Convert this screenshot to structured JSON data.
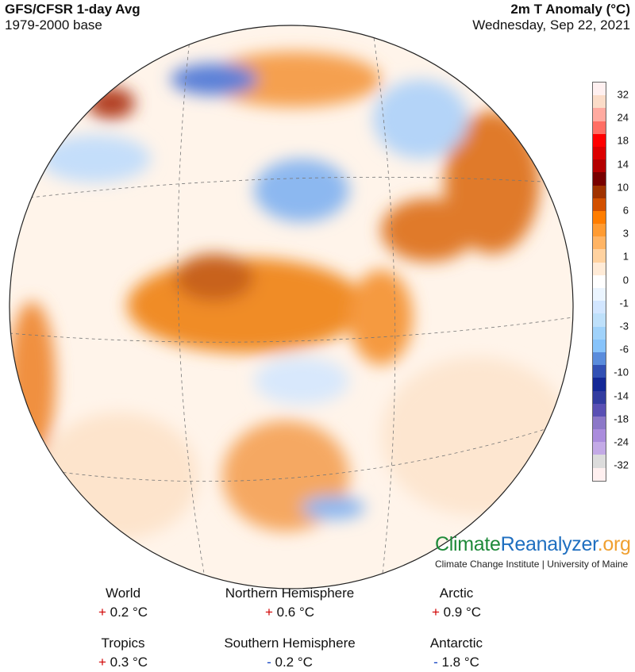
{
  "header": {
    "left_title": "GFS/CFSR 1-day Avg",
    "left_subtitle": "1979-2000 base",
    "right_title": "2m T Anomaly (°C)",
    "right_date": "Wednesday, Sep 22, 2021"
  },
  "colorbar": {
    "labels": [
      "32",
      "24",
      "18",
      "14",
      "10",
      "6",
      "3",
      "1",
      "0",
      "-1",
      "-3",
      "-6",
      "-10",
      "-14",
      "-18",
      "-24",
      "-32"
    ],
    "colors": [
      "#fff0f0",
      "#fbdcc8",
      "#ffaaa0",
      "#ff6e64",
      "#ff0000",
      "#dc0000",
      "#b40000",
      "#780000",
      "#a03200",
      "#d25000",
      "#ff7d00",
      "#ff9b32",
      "#ffb464",
      "#ffd2a0",
      "#ffebd7",
      "#ffffff",
      "#ebf5ff",
      "#d2e6ff",
      "#bee0fa",
      "#a0d2fa",
      "#87c3fa",
      "#5a8cdc",
      "#3250b4",
      "#142896",
      "#323ca0",
      "#5a50b4",
      "#8c78c8",
      "#aa8cdc",
      "#c3aae6",
      "#dcdcdc",
      "#fff0f0"
    ]
  },
  "branding": {
    "logo_part1": "Climate",
    "logo_part2": "Reanalyzer",
    "logo_part3": ".org",
    "institute": "Climate Change Institute | University of Maine"
  },
  "stats": [
    {
      "label": "World",
      "sign": "+",
      "value": "0.2 °C"
    },
    {
      "label": "Northern Hemisphere",
      "sign": "+",
      "value": "0.6 °C"
    },
    {
      "label": "Arctic",
      "sign": "+",
      "value": "0.9 °C"
    },
    {
      "label": "Tropics",
      "sign": "+",
      "value": "0.3 °C"
    },
    {
      "label": "Southern Hemisphere",
      "sign": "-",
      "value": "0.2 °C"
    },
    {
      "label": "Antarctic",
      "sign": "-",
      "value": "1.8 °C"
    }
  ]
}
